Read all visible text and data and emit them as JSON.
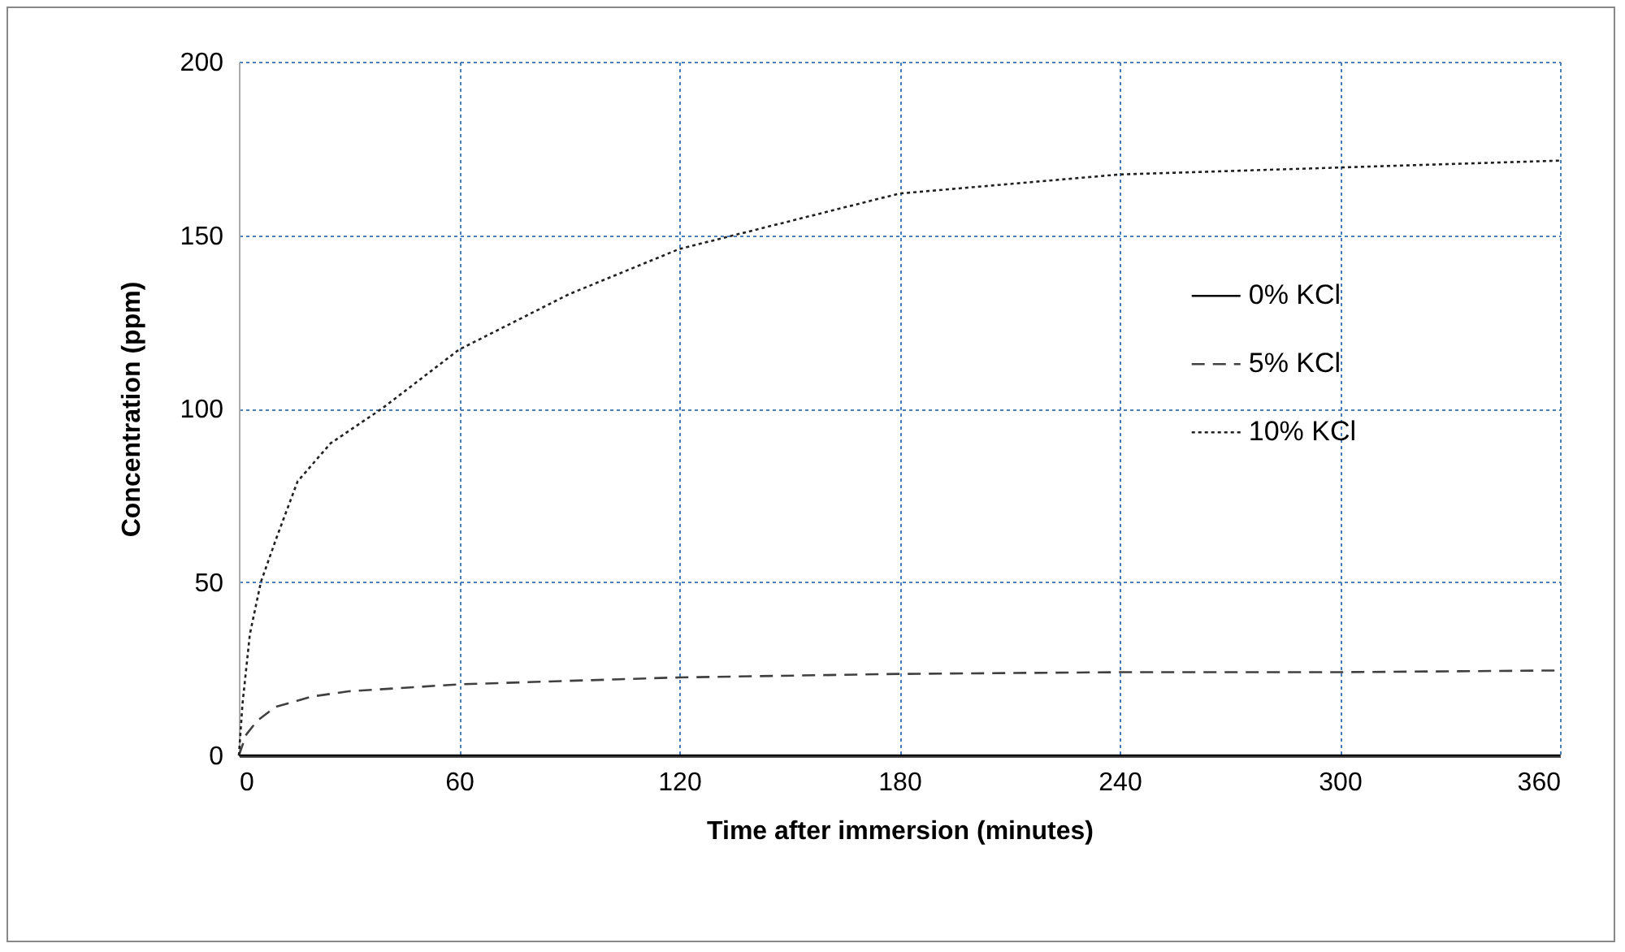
{
  "chart_data": {
    "type": "line",
    "xlabel": "Time after immersion (minutes)",
    "ylabel": "Concentration (ppm)",
    "xlim": [
      0,
      360
    ],
    "xticks": [
      0,
      60,
      120,
      180,
      240,
      300,
      360
    ],
    "ylim": [
      0,
      200
    ],
    "yticks": [
      0,
      50,
      100,
      150,
      200
    ],
    "grid": true,
    "legend": "right",
    "series": [
      {
        "name": "0% KCl",
        "color": "#000000",
        "line_style": "solid",
        "x": [
          0,
          60,
          120,
          180,
          240,
          300,
          360
        ],
        "values": [
          0,
          0,
          0,
          0,
          0,
          0,
          0
        ]
      },
      {
        "name": "5% KCl",
        "color": "#404040",
        "line_style": "dashed",
        "x": [
          0,
          2,
          5,
          10,
          20,
          30,
          60,
          90,
          120,
          180,
          240,
          300,
          360
        ],
        "values": [
          0,
          6,
          10,
          14,
          17,
          18.5,
          20.5,
          21.5,
          22.5,
          23.5,
          24,
          24,
          24.5
        ]
      },
      {
        "name": "10% KCl",
        "color": "#202020",
        "line_style": "dotted",
        "x": [
          0,
          1,
          3,
          6,
          10,
          16,
          25,
          39,
          60,
          90,
          120,
          135,
          180,
          240,
          300,
          360
        ],
        "values": [
          0,
          15,
          35,
          50,
          62,
          79,
          90,
          100,
          117,
          133,
          146,
          150,
          162,
          167.5,
          169.5,
          171.5
        ]
      }
    ]
  }
}
